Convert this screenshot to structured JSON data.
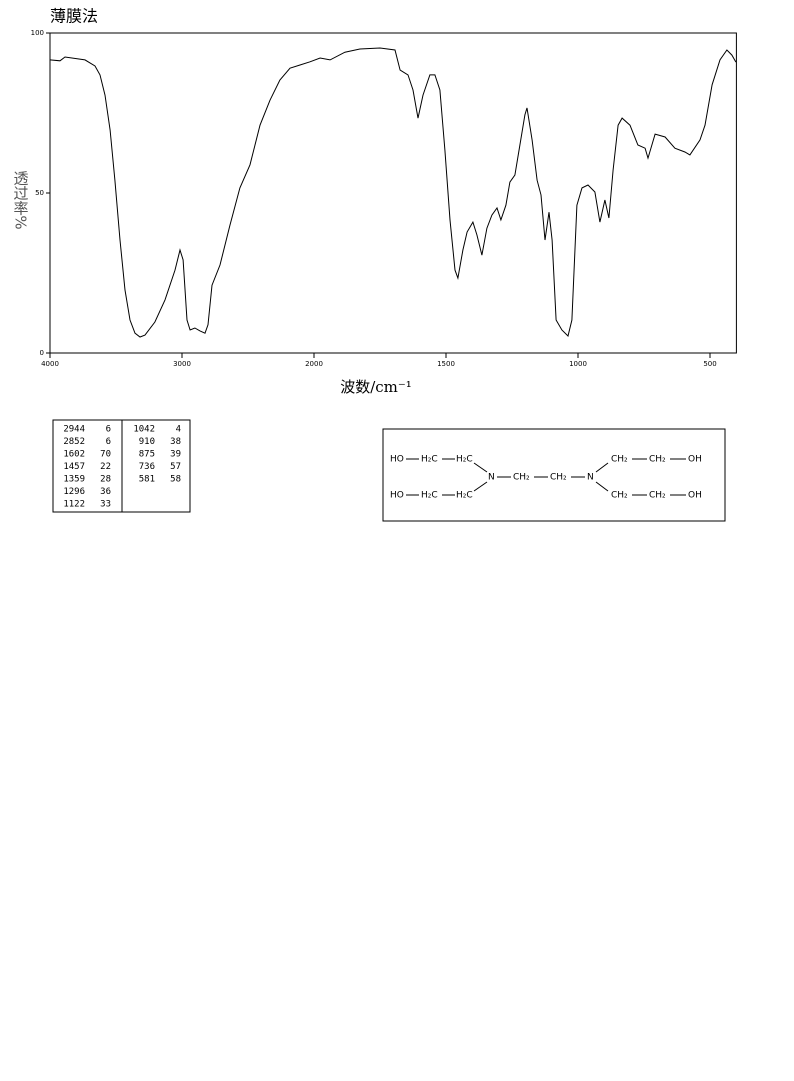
{
  "chart_data": {
    "type": "line",
    "title": "薄膜法",
    "xlabel": "波数/cm⁻¹",
    "ylabel": "透过率%",
    "color": "#000000",
    "xlim": [
      4000,
      400
    ],
    "ylim": [
      0,
      100
    ],
    "xticks": [
      4000,
      3000,
      2000,
      1500,
      1000,
      500
    ],
    "yticks": [
      0,
      50,
      100
    ],
    "x": [
      4000,
      3924,
      3886,
      3735,
      3659,
      3621,
      3583,
      3545,
      3508,
      3470,
      3432,
      3394,
      3356,
      3318,
      3280,
      3205,
      3129,
      3053,
      3015,
      2992,
      2962,
      2939,
      2902,
      2864,
      2826,
      2803,
      2773,
      2712,
      2636,
      2561,
      2485,
      2409,
      2333,
      2258,
      2182,
      2106,
      2030,
      1977,
      1939,
      1883,
      1826,
      1750,
      1693,
      1674,
      1644,
      1625,
      1606,
      1587,
      1561,
      1542,
      1523,
      1504,
      1485,
      1466,
      1455,
      1436,
      1420,
      1398,
      1383,
      1364,
      1345,
      1326,
      1307,
      1292,
      1273,
      1258,
      1239,
      1220,
      1201,
      1193,
      1174,
      1155,
      1140,
      1125,
      1110,
      1098,
      1083,
      1061,
      1038,
      1023,
      1004,
      985,
      962,
      936,
      917,
      898,
      883,
      867,
      848,
      833,
      803,
      773,
      746,
      735,
      708,
      670,
      633,
      595,
      576,
      538,
      519,
      492,
      462,
      436,
      417,
      402
    ],
    "values": [
      91.6,
      91.3,
      92.5,
      91.6,
      89.7,
      86.9,
      80.6,
      69.7,
      54,
      35.3,
      19.7,
      10.3,
      6.2,
      5,
      5.6,
      9.7,
      16.6,
      25.9,
      32.2,
      29.1,
      10.3,
      7.2,
      7.8,
      6.9,
      6.2,
      8.8,
      21.2,
      27.5,
      40,
      51.6,
      58.8,
      71.2,
      79,
      85.3,
      89,
      90,
      91,
      92.2,
      91.6,
      94,
      95,
      95.3,
      94.7,
      88.4,
      86.9,
      82.2,
      73.4,
      80.6,
      86.9,
      86.9,
      82.2,
      63.4,
      41.6,
      25.9,
      23.4,
      32.2,
      37.8,
      40.9,
      36.9,
      30.6,
      39,
      43.1,
      45.3,
      41.6,
      46.2,
      53.4,
      55.6,
      65,
      74.4,
      76.6,
      66.6,
      54,
      49.4,
      35.3,
      44,
      35.3,
      10.3,
      7.2,
      5.3,
      10.3,
      46.2,
      51.6,
      52.5,
      50.3,
      40.9,
      47.8,
      42.2,
      57.2,
      71.2,
      73.4,
      71.2,
      65,
      64,
      60.9,
      68.4,
      67.5,
      64,
      62.8,
      61.9,
      66.6,
      71.2,
      83.8,
      91.6,
      94.7,
      93.1,
      90.9
    ]
  },
  "peak_table": {
    "left": [
      [
        2944,
        6
      ],
      [
        2852,
        6
      ],
      [
        1602,
        70
      ],
      [
        1457,
        22
      ],
      [
        1359,
        28
      ],
      [
        1296,
        36
      ],
      [
        1122,
        33
      ]
    ],
    "right": [
      [
        1042,
        4
      ],
      [
        910,
        38
      ],
      [
        875,
        39
      ],
      [
        736,
        57
      ],
      [
        581,
        58
      ]
    ]
  },
  "structure": {
    "labels": [
      "HO",
      "H₂C",
      "H₂C",
      "N",
      "CH₂",
      "CH₂",
      "N",
      "CH₂",
      "CH₂",
      "OH",
      "HO",
      "H₂C",
      "H₂C",
      "CH₂",
      "CH₂",
      "OH"
    ]
  }
}
